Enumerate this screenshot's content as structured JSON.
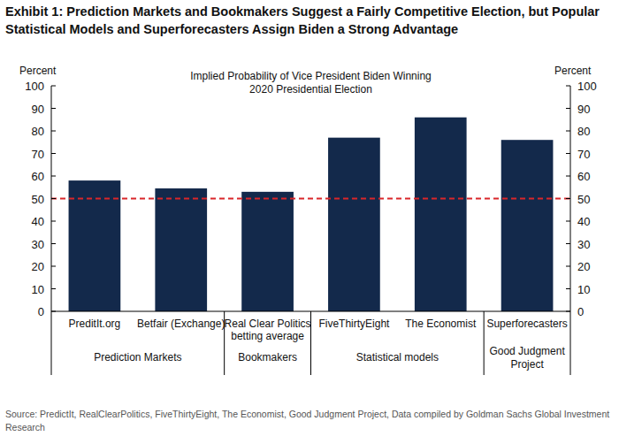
{
  "chart_data": {
    "type": "bar",
    "title": "Exhibit 1: Prediction Markets and Bookmakers Suggest a Fairly Competitive Election, but Popular Statistical Models and Superforecasters Assign Biden a Strong Advantage",
    "subtitle": "Implied Probability of Vice President Biden Winning 2020 Presidential Election",
    "ylabel": "Percent",
    "y2label": "Percent",
    "categories": [
      "PreditIt.org",
      "Betfair (Exchange)",
      "Real Clear Politics betting average",
      "FiveThirtyEight",
      "The Economist",
      "Superforecasters"
    ],
    "values": [
      58,
      54.5,
      53,
      77,
      86,
      76
    ],
    "color": "#13294b",
    "groups": [
      {
        "label": "Prediction Markets",
        "count": 2
      },
      {
        "label": "Bookmakers",
        "count": 1
      },
      {
        "label": "Statistical models",
        "count": 2
      },
      {
        "label": "Good Judgment Project",
        "count": 1
      }
    ],
    "hline": {
      "value": 50,
      "color": "#d9262a",
      "line_style": "dashed"
    },
    "ylim": [
      0,
      100
    ],
    "yticks": [
      0,
      10,
      20,
      30,
      40,
      50,
      60,
      70,
      80,
      90,
      100
    ],
    "y2lim": [
      0,
      100
    ],
    "y2ticks": [
      0,
      10,
      20,
      30,
      40,
      50,
      60,
      70,
      80,
      90,
      100
    ],
    "grid": false,
    "data_labels": false,
    "source": "Source: PredictIt, RealClearPolitics, FiveThirtyEight, The Economist, Good Judgment Project, Data compiled by Goldman Sachs Global Investment Research"
  }
}
